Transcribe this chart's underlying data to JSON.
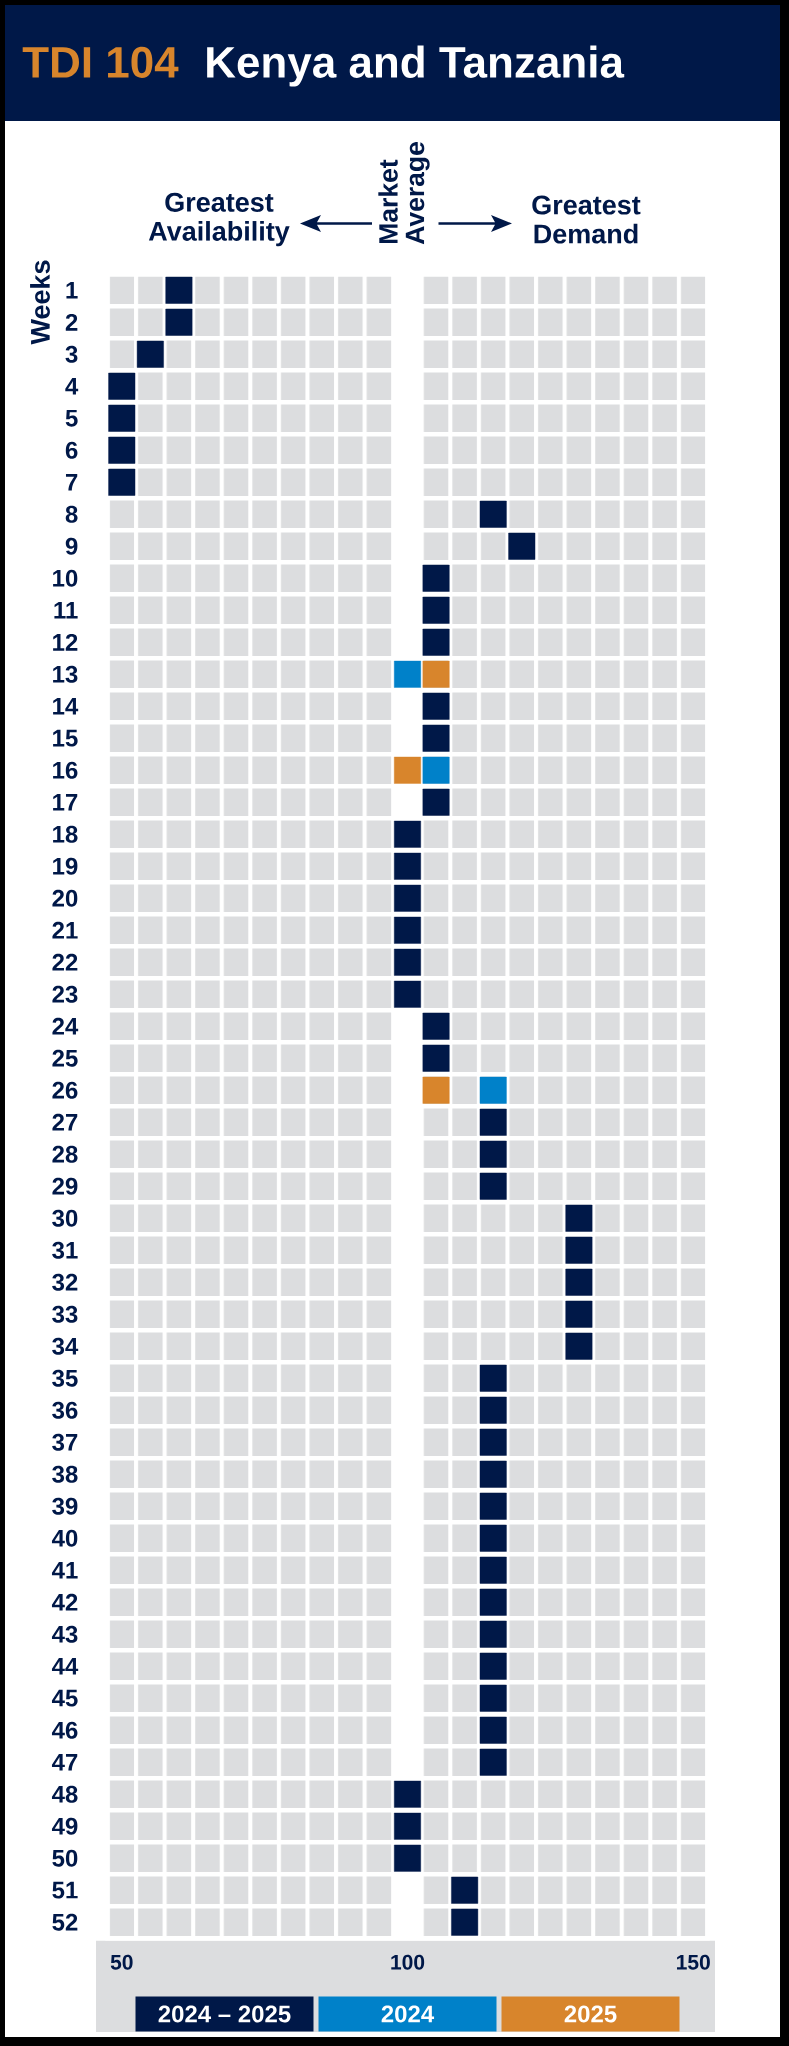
{
  "chart_data": {
    "type": "scatter",
    "title": "TDI 104",
    "subtitle": "Kenya and Tanzania",
    "ylabel": "Weeks",
    "annotations": [
      "Greatest Availability",
      "Market Average",
      "Greatest Demand"
    ],
    "xlim": [
      47.5,
      152.5
    ],
    "xticks": [
      50,
      100,
      150
    ],
    "ylim": [
      52.5,
      0.5
    ],
    "yticks": [
      1,
      2,
      3,
      4,
      5,
      6,
      7,
      8,
      9,
      10,
      11,
      12,
      13,
      14,
      15,
      16,
      17,
      18,
      19,
      20,
      21,
      22,
      23,
      24,
      25,
      26,
      27,
      28,
      29,
      30,
      31,
      32,
      33,
      34,
      35,
      36,
      37,
      38,
      39,
      40,
      41,
      42,
      43,
      44,
      45,
      46,
      47,
      48,
      49,
      50,
      51,
      52
    ],
    "marker": "square",
    "legend": "bottom",
    "bands": [
      {
        "axis": "x",
        "from": 97.5,
        "to": 102.5,
        "color": "#ffffff"
      }
    ],
    "series": [
      {
        "name": "2024 – 2025",
        "color": "#001848",
        "x": [
          60,
          60,
          55,
          50,
          50,
          50,
          50,
          115,
          120,
          105,
          105,
          105,
          105,
          105,
          105,
          100,
          100,
          100,
          100,
          100,
          100,
          105,
          105,
          115,
          115,
          115,
          130,
          130,
          130,
          130,
          130,
          115,
          115,
          115,
          115,
          115,
          115,
          115,
          115,
          115,
          115,
          115,
          115,
          115,
          100,
          100,
          100,
          110,
          110
        ],
        "values": [
          1,
          2,
          3,
          4,
          5,
          6,
          7,
          8,
          9,
          10,
          11,
          12,
          14,
          15,
          17,
          18,
          19,
          20,
          21,
          22,
          23,
          24,
          25,
          27,
          28,
          29,
          30,
          31,
          32,
          33,
          34,
          35,
          36,
          37,
          38,
          39,
          40,
          41,
          42,
          43,
          44,
          45,
          46,
          47,
          48,
          49,
          50,
          51,
          52
        ]
      },
      {
        "name": "2024",
        "color": "#0081c9",
        "x": [
          100,
          105,
          115
        ],
        "values": [
          13,
          16,
          26
        ]
      },
      {
        "name": "2025",
        "color": "#d8852c",
        "x": [
          105,
          100,
          105
        ],
        "values": [
          13,
          16,
          26
        ]
      }
    ]
  }
}
